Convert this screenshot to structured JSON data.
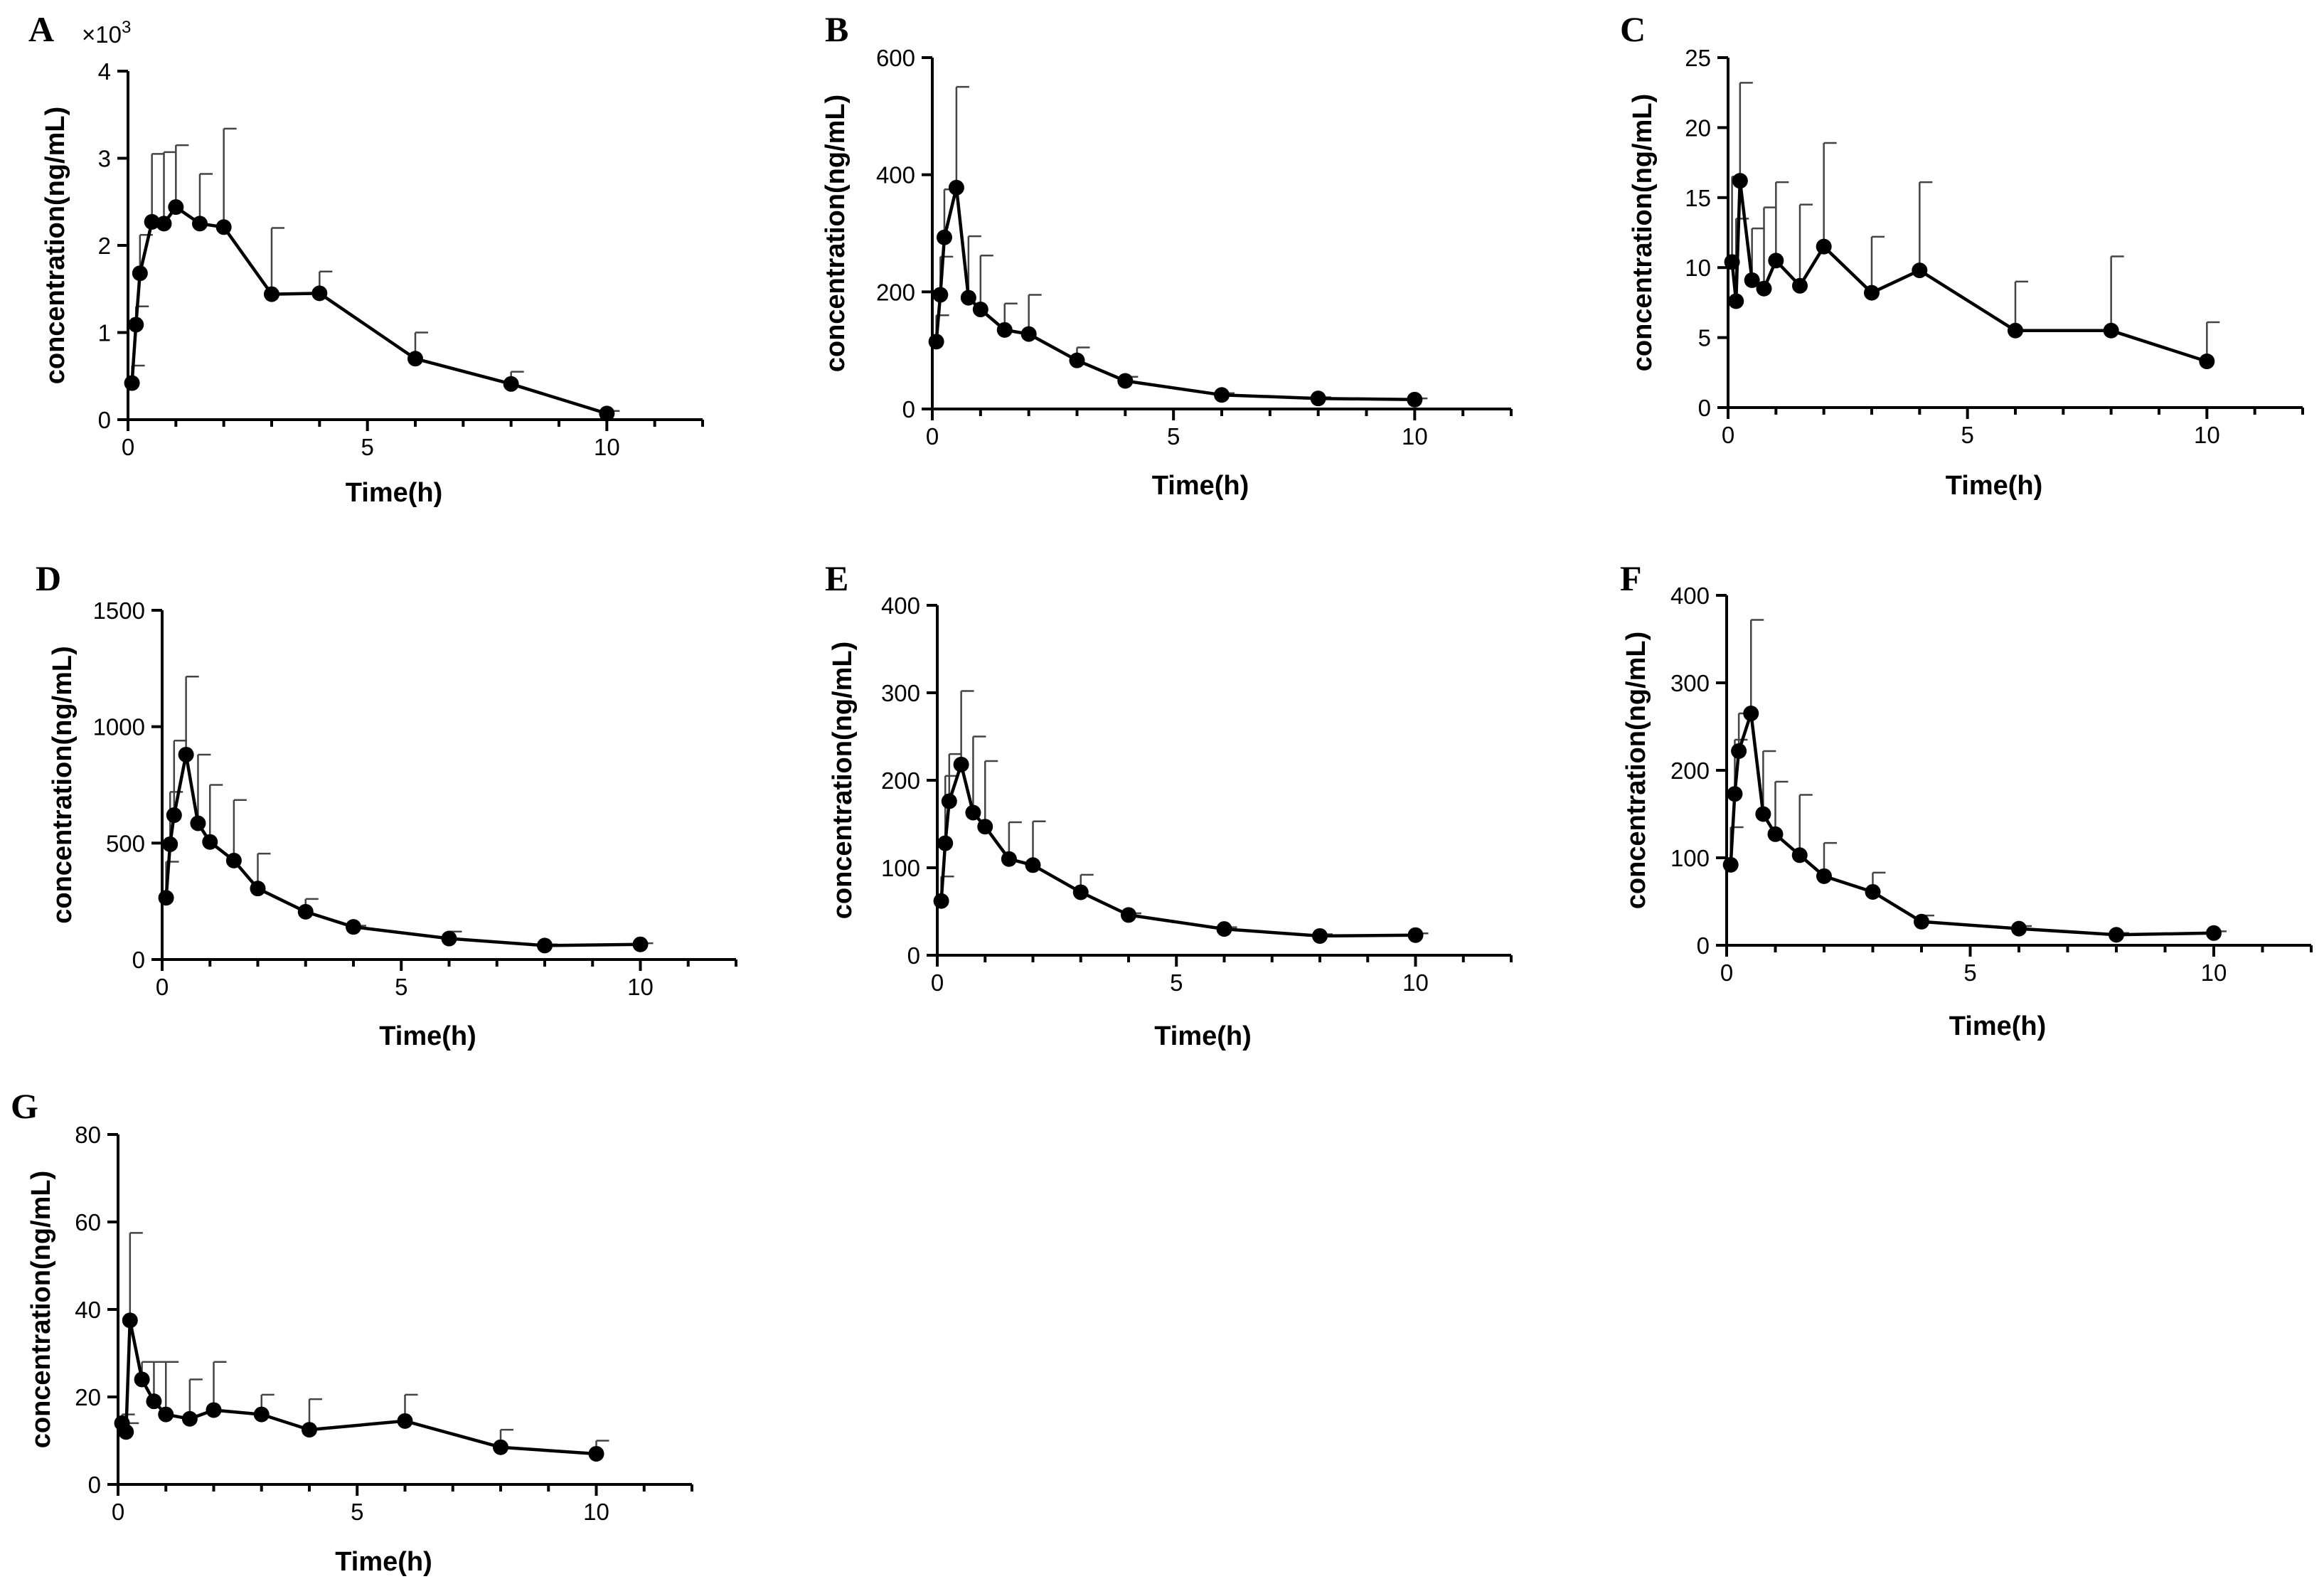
{
  "figure_title": "",
  "chart_data": [
    {
      "panel": "A",
      "type": "line",
      "title": "",
      "xlabel": "Time(h)",
      "ylabel": "concentration(ng/mL)",
      "y_scale_label": "×10",
      "y_scale_exponent": "3",
      "xlim": [
        0,
        12
      ],
      "ylim": [
        0,
        4
      ],
      "x_ticks": [
        0,
        5,
        10
      ],
      "x_tick_labels": [
        "0",
        "5",
        "10"
      ],
      "y_ticks": [
        0,
        1,
        2,
        3,
        4
      ],
      "y_tick_labels": [
        "0",
        "1",
        "2",
        "3",
        "4"
      ],
      "x": [
        0.083,
        0.167,
        0.25,
        0.5,
        0.75,
        1,
        1.5,
        2,
        3,
        4,
        6,
        8,
        10
      ],
      "values": [
        0.42,
        1.09,
        1.68,
        2.27,
        2.25,
        2.44,
        2.25,
        2.21,
        1.44,
        1.45,
        0.7,
        0.41,
        0.07
      ],
      "error_upper": [
        0.62,
        1.3,
        2.12,
        3.05,
        3.07,
        3.15,
        2.82,
        3.34,
        2.2,
        1.7,
        1.0,
        0.55,
        0.1
      ]
    },
    {
      "panel": "B",
      "type": "line",
      "title": "",
      "xlabel": "Time(h)",
      "ylabel": "concentration(ng/mL)",
      "xlim": [
        0,
        12
      ],
      "ylim": [
        0,
        600
      ],
      "x_ticks": [
        0,
        5,
        10
      ],
      "x_tick_labels": [
        "0",
        "5",
        "10"
      ],
      "y_ticks": [
        0,
        200,
        400,
        600
      ],
      "y_tick_labels": [
        "0",
        "200",
        "400",
        "600"
      ],
      "x": [
        0.083,
        0.167,
        0.25,
        0.5,
        0.75,
        1,
        1.5,
        2,
        3,
        4,
        6,
        8,
        10
      ],
      "values": [
        115,
        195,
        293,
        378,
        190,
        170,
        135,
        128,
        83,
        48,
        24,
        18,
        16
      ],
      "error_upper": [
        160,
        260,
        375,
        550,
        295,
        262,
        180,
        195,
        105,
        55,
        27,
        20,
        18
      ]
    },
    {
      "panel": "C",
      "type": "line",
      "title": "",
      "xlabel": "Time(h)",
      "ylabel": "concentration(ng/mL)",
      "xlim": [
        0,
        12
      ],
      "ylim": [
        0,
        25
      ],
      "x_ticks": [
        0,
        5,
        10
      ],
      "x_tick_labels": [
        "0",
        "5",
        "10"
      ],
      "y_ticks": [
        0,
        5,
        10,
        15,
        20,
        25
      ],
      "y_tick_labels": [
        "0",
        "5",
        "10",
        "15",
        "20",
        "25"
      ],
      "x": [
        0.083,
        0.167,
        0.25,
        0.5,
        0.75,
        1,
        1.5,
        2,
        3,
        4,
        6,
        8,
        10
      ],
      "values": [
        10.4,
        7.6,
        16.2,
        9.1,
        8.5,
        10.5,
        8.7,
        11.5,
        8.2,
        9.8,
        5.5,
        5.5,
        3.3
      ],
      "error_upper": [
        16.5,
        13.5,
        23.2,
        12.8,
        14.3,
        16.1,
        14.5,
        18.9,
        12.2,
        16.1,
        9.0,
        10.8,
        6.1
      ]
    },
    {
      "panel": "D",
      "type": "line",
      "title": "",
      "xlabel": "Time(h)",
      "ylabel": "concentration(ng/mL)",
      "xlim": [
        0,
        12
      ],
      "ylim": [
        0,
        1500
      ],
      "x_ticks": [
        0,
        5,
        10
      ],
      "x_tick_labels": [
        "0",
        "5",
        "10"
      ],
      "y_ticks": [
        0,
        500,
        1000,
        1500
      ],
      "y_tick_labels": [
        "0",
        "500",
        "1000",
        "1500"
      ],
      "x": [
        0.083,
        0.167,
        0.25,
        0.5,
        0.75,
        1,
        1.5,
        2,
        3,
        4,
        6,
        8,
        10
      ],
      "values": [
        265,
        495,
        620,
        880,
        585,
        505,
        425,
        305,
        205,
        140,
        90,
        60,
        65
      ],
      "error_upper": [
        420,
        720,
        940,
        1215,
        880,
        750,
        685,
        455,
        260,
        145,
        120,
        65,
        70
      ]
    },
    {
      "panel": "E",
      "type": "line",
      "title": "",
      "xlabel": "Time(h)",
      "ylabel": "concentration(ng/mL)",
      "xlim": [
        0,
        12
      ],
      "ylim": [
        0,
        400
      ],
      "x_ticks": [
        0,
        5,
        10
      ],
      "x_tick_labels": [
        "0",
        "5",
        "10"
      ],
      "y_ticks": [
        0,
        100,
        200,
        300,
        400
      ],
      "y_tick_labels": [
        "0",
        "100",
        "200",
        "300",
        "400"
      ],
      "x": [
        0.083,
        0.167,
        0.25,
        0.5,
        0.75,
        1,
        1.5,
        2,
        3,
        4,
        6,
        8,
        10
      ],
      "values": [
        62,
        128,
        176,
        218,
        163,
        147,
        110,
        103,
        72,
        46,
        30,
        22,
        23
      ],
      "error_upper": [
        90,
        205,
        230,
        302,
        250,
        222,
        152,
        153,
        92,
        48,
        32,
        24,
        25
      ]
    },
    {
      "panel": "F",
      "type": "line",
      "title": "",
      "xlabel": "Time(h)",
      "ylabel": "concentration(ng/mL)",
      "xlim": [
        0,
        12
      ],
      "ylim": [
        0,
        400
      ],
      "x_ticks": [
        0,
        5,
        10
      ],
      "x_tick_labels": [
        "0",
        "5",
        "10"
      ],
      "y_ticks": [
        0,
        100,
        200,
        300,
        400
      ],
      "y_tick_labels": [
        "0",
        "100",
        "200",
        "300",
        "400"
      ],
      "x": [
        0.083,
        0.167,
        0.25,
        0.5,
        0.75,
        1,
        1.5,
        2,
        3,
        4,
        6,
        8,
        10
      ],
      "values": [
        92,
        173,
        222,
        265,
        150,
        127,
        103,
        79,
        61,
        27,
        19,
        12,
        14
      ],
      "error_upper": [
        135,
        235,
        265,
        372,
        222,
        187,
        172,
        117,
        83,
        34,
        22,
        14,
        16
      ]
    },
    {
      "panel": "G",
      "type": "line",
      "title": "",
      "xlabel": "Time(h)",
      "ylabel": "concentration(ng/mL)",
      "xlim": [
        0,
        12
      ],
      "ylim": [
        0,
        80
      ],
      "x_ticks": [
        0,
        5,
        10
      ],
      "x_tick_labels": [
        "0",
        "5",
        "10"
      ],
      "y_ticks": [
        0,
        20,
        40,
        60,
        80
      ],
      "y_tick_labels": [
        "0",
        "20",
        "40",
        "60",
        "80"
      ],
      "x": [
        0.083,
        0.167,
        0.25,
        0.5,
        0.75,
        1,
        1.5,
        2,
        3,
        4,
        6,
        8,
        10
      ],
      "values": [
        14,
        12,
        37.5,
        24,
        19,
        16,
        15,
        17,
        16,
        12.5,
        14.5,
        8.5,
        7
      ],
      "error_upper": [
        16,
        14,
        57.5,
        28,
        28,
        28,
        24,
        28,
        20.5,
        19.5,
        20.5,
        12.5,
        10
      ]
    }
  ]
}
